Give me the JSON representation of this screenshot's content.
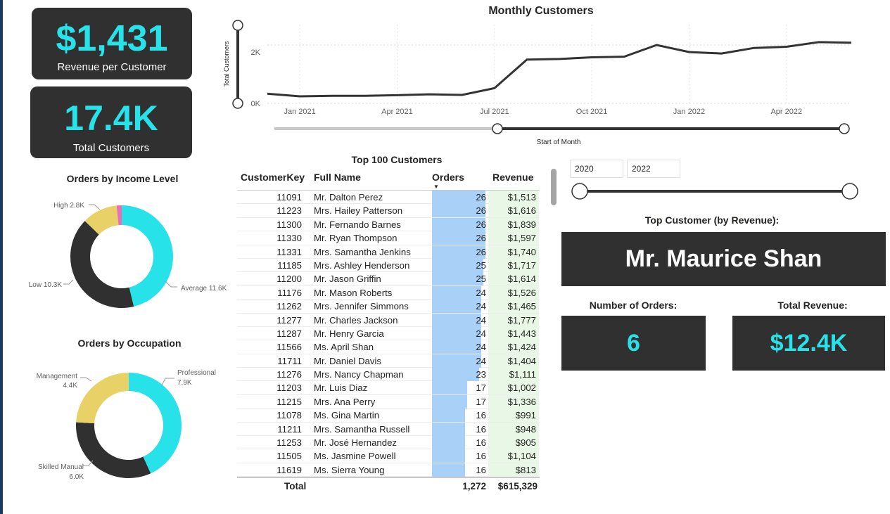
{
  "kpi_revenue": {
    "value": "$1,431",
    "label": "Revenue per Customer"
  },
  "kpi_customers": {
    "value": "17.4K",
    "label": "Total Customers"
  },
  "income_chart": {
    "title": "Orders by Income Level",
    "labels": [
      "High 2.8K",
      "Low 10.3K",
      "Average 11.6K"
    ]
  },
  "occupation_chart": {
    "title": "Orders by Occupation",
    "labels": {
      "management": [
        "Management",
        "4.4K"
      ],
      "professional": [
        "Professional",
        "7.9K"
      ],
      "skilled": [
        "Skilled Manual",
        "6.0K"
      ]
    }
  },
  "monthly_chart": {
    "title": "Monthly Customers",
    "ylabel": "Total Customers",
    "xlabel": "Start of Month",
    "yticks": [
      "2K",
      "0K"
    ],
    "xticks": [
      "Jan 2021",
      "Apr 2021",
      "Jul 2021",
      "Oct 2021",
      "Jan 2022",
      "Apr 2022"
    ]
  },
  "table": {
    "title": "Top 100 Customers",
    "headers": {
      "key": "CustomerKey",
      "name": "Full Name",
      "orders": "Orders",
      "revenue": "Revenue"
    },
    "rows": [
      {
        "key": "11091",
        "name": "Mr. Dalton Perez",
        "orders": "26",
        "revenue": "$1,513"
      },
      {
        "key": "11223",
        "name": "Mrs. Hailey Patterson",
        "orders": "26",
        "revenue": "$1,616"
      },
      {
        "key": "11300",
        "name": "Mr. Fernando Barnes",
        "orders": "26",
        "revenue": "$1,839"
      },
      {
        "key": "11330",
        "name": "Mr. Ryan Thompson",
        "orders": "26",
        "revenue": "$1,597"
      },
      {
        "key": "11331",
        "name": "Mrs. Samantha Jenkins",
        "orders": "26",
        "revenue": "$1,740"
      },
      {
        "key": "11185",
        "name": "Mrs. Ashley Henderson",
        "orders": "25",
        "revenue": "$1,717"
      },
      {
        "key": "11200",
        "name": "Mr. Jason Griffin",
        "orders": "25",
        "revenue": "$1,614"
      },
      {
        "key": "11176",
        "name": "Mr. Mason Roberts",
        "orders": "24",
        "revenue": "$1,526"
      },
      {
        "key": "11262",
        "name": "Mrs. Jennifer Simmons",
        "orders": "24",
        "revenue": "$1,465"
      },
      {
        "key": "11277",
        "name": "Mr. Charles Jackson",
        "orders": "24",
        "revenue": "$1,777"
      },
      {
        "key": "11287",
        "name": "Mr. Henry Garcia",
        "orders": "24",
        "revenue": "$1,443"
      },
      {
        "key": "11566",
        "name": "Ms. April Shan",
        "orders": "24",
        "revenue": "$1,424"
      },
      {
        "key": "11711",
        "name": "Mr. Daniel Davis",
        "orders": "24",
        "revenue": "$1,404"
      },
      {
        "key": "11276",
        "name": "Mrs. Nancy Chapman",
        "orders": "23",
        "revenue": "$1,111"
      },
      {
        "key": "11203",
        "name": "Mr. Luis Diaz",
        "orders": "17",
        "revenue": "$1,002"
      },
      {
        "key": "11215",
        "name": "Mrs. Ana Perry",
        "orders": "17",
        "revenue": "$1,336"
      },
      {
        "key": "11078",
        "name": "Ms. Gina Martin",
        "orders": "16",
        "revenue": "$991"
      },
      {
        "key": "11211",
        "name": "Mrs. Samantha Russell",
        "orders": "16",
        "revenue": "$948"
      },
      {
        "key": "11253",
        "name": "Mr. José Hernandez",
        "orders": "16",
        "revenue": "$905"
      },
      {
        "key": "11505",
        "name": "Ms. Jasmine Powell",
        "orders": "16",
        "revenue": "$1,104"
      },
      {
        "key": "11619",
        "name": "Ms. Sierra Young",
        "orders": "16",
        "revenue": "$813"
      }
    ],
    "total": {
      "label": "Total",
      "orders": "1,272",
      "revenue": "$615,329"
    }
  },
  "year_slicer": {
    "start": "2020",
    "end": "2022"
  },
  "top_customer": {
    "title": "Top Customer (by Revenue):",
    "name": "Mr. Maurice Shan"
  },
  "num_orders": {
    "title": "Number of Orders:",
    "value": "6"
  },
  "total_revenue": {
    "title": "Total Revenue:",
    "value": "$12.4K"
  },
  "chart_data": [
    {
      "type": "pie",
      "title": "Orders by Income Level",
      "categories": [
        "Average",
        "Low",
        "High",
        "Other"
      ],
      "values": [
        11.6,
        10.3,
        2.8,
        0.4
      ],
      "colors": [
        "#28e2ea",
        "#303030",
        "#e8d166",
        "#e76fb6"
      ]
    },
    {
      "type": "pie",
      "title": "Orders by Occupation",
      "categories": [
        "Professional",
        "Skilled Manual",
        "Management"
      ],
      "values": [
        7.9,
        6.0,
        4.4
      ],
      "colors": [
        "#28e2ea",
        "#303030",
        "#e8d166"
      ]
    },
    {
      "type": "line",
      "title": "Monthly Customers",
      "xlabel": "Start of Month",
      "ylabel": "Total Customers",
      "x": [
        "2020-12",
        "2021-01",
        "2021-02",
        "2021-03",
        "2021-04",
        "2021-05",
        "2021-06",
        "2021-07",
        "2021-08",
        "2021-09",
        "2021-10",
        "2021-11",
        "2021-12",
        "2022-01",
        "2022-02",
        "2022-03",
        "2022-04",
        "2022-05",
        "2022-06"
      ],
      "values": [
        330,
        240,
        260,
        260,
        280,
        310,
        290,
        520,
        1500,
        1520,
        1580,
        1600,
        2000,
        1760,
        1710,
        1900,
        1940,
        2100,
        2080
      ],
      "ylim": [
        0,
        2700
      ],
      "line_color": "#333333"
    }
  ]
}
